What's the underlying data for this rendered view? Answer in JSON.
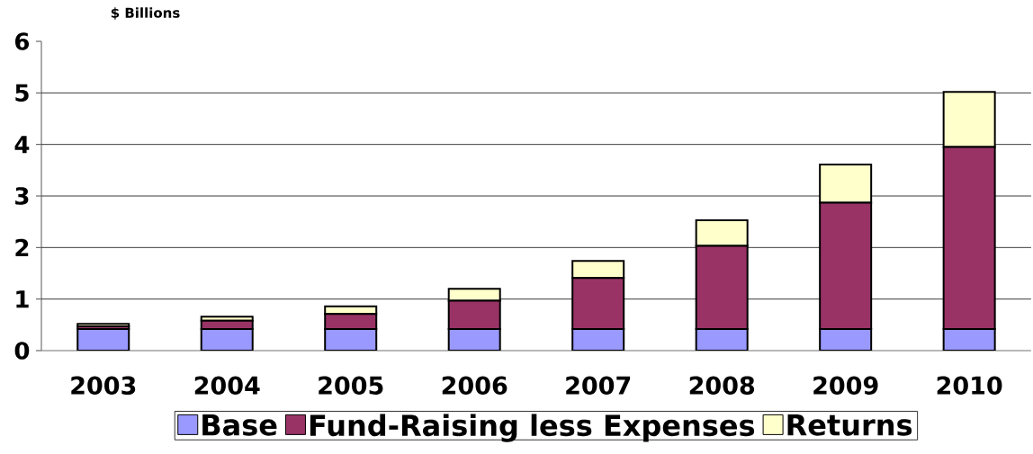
{
  "chart_data": {
    "type": "bar",
    "stacked": true,
    "ylabel": "$ Billions",
    "categories": [
      "2003",
      "2004",
      "2005",
      "2006",
      "2007",
      "2008",
      "2009",
      "2010"
    ],
    "series": [
      {
        "name": "Base",
        "color": "#9999ff",
        "values": [
          0.42,
          0.42,
          0.42,
          0.42,
          0.42,
          0.42,
          0.42,
          0.42
        ]
      },
      {
        "name": "Fund-Raising less Expenses",
        "color": "#993366",
        "values": [
          0.05,
          0.16,
          0.29,
          0.55,
          0.99,
          1.61,
          2.45,
          3.53
        ]
      },
      {
        "name": "Returns",
        "color": "#ffffcc",
        "values": [
          0.05,
          0.08,
          0.15,
          0.23,
          0.33,
          0.5,
          0.74,
          1.07
        ]
      }
    ],
    "ylim": [
      0,
      6
    ],
    "yticks": [
      0,
      1,
      2,
      3,
      4,
      5,
      6
    ],
    "grid": "y",
    "legend": "bottom"
  }
}
